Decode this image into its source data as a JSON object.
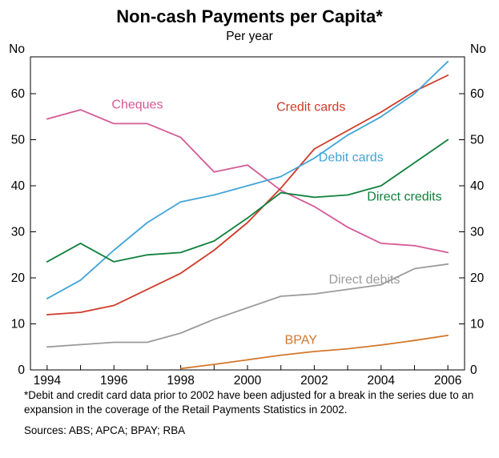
{
  "chart_data": {
    "type": "line",
    "title": "Non-cash Payments per Capita*",
    "subtitle": "Per year",
    "unit_label": "No",
    "x": [
      1994,
      1995,
      1996,
      1997,
      1998,
      1999,
      2000,
      2001,
      2002,
      2003,
      2004,
      2005,
      2006
    ],
    "xlim": [
      1993.5,
      2006.5
    ],
    "ylim": [
      0,
      68
    ],
    "yticks": [
      0,
      10,
      20,
      30,
      40,
      50,
      60
    ],
    "xtick_labels": [
      1994,
      1996,
      1998,
      2000,
      2002,
      2004,
      2006
    ],
    "grid": false,
    "legend_position": "inline-labels",
    "series": [
      {
        "name": "Cheques",
        "color": "#d45a96",
        "values": [
          54.5,
          56.5,
          53.5,
          53.5,
          50.5,
          43,
          44.5,
          39,
          35.5,
          31,
          27.5,
          27,
          25.5
        ],
        "label_x": 1996.7,
        "label_y": 57.5
      },
      {
        "name": "Credit cards",
        "color": "#cf3a28",
        "values": [
          12,
          12.5,
          14,
          17.5,
          21,
          26,
          32,
          39.5,
          48,
          52,
          56,
          60.5,
          64
        ],
        "label_x": 2001.9,
        "label_y": 57
      },
      {
        "name": "Debit cards",
        "color": "#41a5d8",
        "values": [
          15.5,
          19.5,
          26,
          32,
          36.5,
          38,
          40,
          42,
          46,
          51,
          55,
          60,
          67
        ],
        "label_x": 2003.1,
        "label_y": 46
      },
      {
        "name": "Direct credits",
        "color": "#0f803c",
        "values": [
          23.5,
          27.5,
          23.5,
          25,
          25.5,
          28,
          33,
          38.5,
          37.5,
          38,
          40,
          45,
          50
        ],
        "label_x": 2004.7,
        "label_y": 37.5
      },
      {
        "name": "Direct debits",
        "color": "#9b9b9b",
        "values": [
          5,
          5.5,
          6,
          6,
          8,
          11,
          13.5,
          16,
          16.5,
          17.5,
          18.5,
          22,
          23
        ],
        "label_x": 2003.5,
        "label_y": 19.5
      },
      {
        "name": "BPAY",
        "color": "#d2772b",
        "values": [
          null,
          null,
          null,
          null,
          0.3,
          1.2,
          2.2,
          3.2,
          4,
          4.6,
          5.4,
          6.4,
          7.5
        ],
        "label_x": 2001.6,
        "label_y": 6.4
      }
    ]
  },
  "footnote": "*Debit and credit card data prior to 2002 have been adjusted for a break in the series due to an expansion in the coverage of the Retail Payments Statistics in 2002.",
  "sources": "Sources: ABS; APCA; BPAY; RBA"
}
